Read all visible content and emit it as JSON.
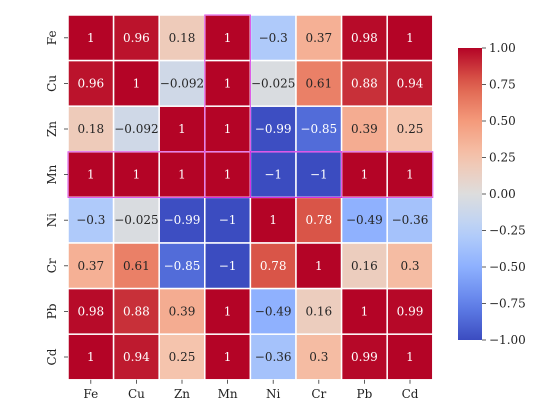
{
  "chart_data": {
    "type": "heatmap",
    "title": "",
    "xlabel": "",
    "ylabel": "",
    "x_categories": [
      "Fe",
      "Cu",
      "Zn",
      "Mn",
      "Ni",
      "Cr",
      "Pb",
      "Cd"
    ],
    "y_categories": [
      "Fe",
      "Cu",
      "Zn",
      "Mn",
      "Ni",
      "Cr",
      "Pb",
      "Cd"
    ],
    "values": [
      [
        1,
        0.96,
        0.18,
        1,
        -0.3,
        0.37,
        0.98,
        1
      ],
      [
        0.96,
        1,
        -0.092,
        1,
        -0.025,
        0.61,
        0.88,
        0.94
      ],
      [
        0.18,
        -0.092,
        1,
        1,
        -0.99,
        -0.85,
        0.39,
        0.25
      ],
      [
        1,
        1,
        1,
        1,
        -1,
        -1,
        1,
        1
      ],
      [
        -0.3,
        -0.025,
        -0.99,
        -1,
        1,
        0.78,
        -0.49,
        -0.36
      ],
      [
        0.37,
        0.61,
        -0.85,
        -1,
        0.78,
        1,
        0.16,
        0.3
      ],
      [
        0.98,
        0.88,
        0.39,
        1,
        -0.49,
        0.16,
        1,
        0.99
      ],
      [
        1,
        0.94,
        0.25,
        1,
        -0.36,
        0.3,
        0.99,
        1
      ]
    ],
    "colormap": "coolwarm",
    "vmin": -1.0,
    "vmax": 1.0,
    "colorbar_ticks": [
      "1.00",
      "0.75",
      "0.50",
      "0.25",
      "0.00",
      "−0.25",
      "−0.50",
      "−0.75",
      "−1.00"
    ],
    "colorbar_tick_values": [
      1,
      0.75,
      0.5,
      0.25,
      0,
      -0.25,
      -0.5,
      -0.75,
      -1
    ],
    "cell_border_color": "#ffffff",
    "selected_cell_border_color": "#d21ee0",
    "grid": false,
    "legend": "colorbar-right"
  }
}
